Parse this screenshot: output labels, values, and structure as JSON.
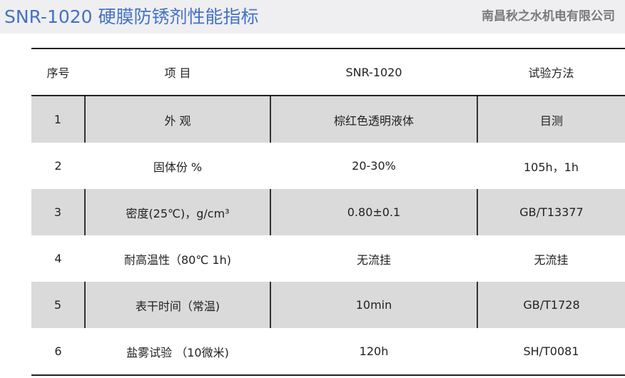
{
  "title": "SNR-1020 硬膜防锈剂性能指标",
  "table": {
    "headers": [
      "序号",
      "项 目",
      "SNR-1020",
      "试验方法"
    ],
    "rows": [
      [
        "1",
        "外 观",
        "棕红色透明液体",
        "目测"
      ],
      [
        "2",
        "固体份 %",
        "20-30%",
        "105h，1h"
      ],
      [
        "3",
        "密度(25℃)，g/cm³",
        "0.80±0.1",
        "GB/T13377"
      ],
      [
        "4",
        "耐高温性（80℃ 1h)",
        "无流挂",
        "无流挂"
      ],
      [
        "5",
        "表干时间（常温)",
        "10min",
        "GB/T1728"
      ],
      [
        "6",
        "盐雾试验 （10微米)",
        "120h",
        "SH/T0081"
      ]
    ]
  },
  "watermark": "南昌秋之水机电有限公司"
}
